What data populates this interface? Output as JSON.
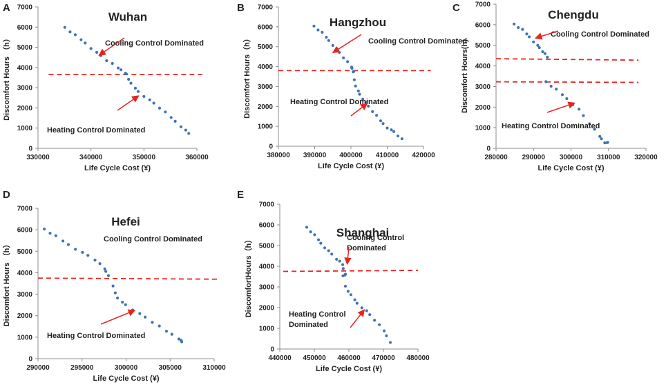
{
  "colors": {
    "series": "#3f73b3",
    "threshold": "#e8231f",
    "arrow": "#e8231f",
    "axis": "#8c8c8c",
    "text": "#222222"
  },
  "chart_data": [
    {
      "panel": "A",
      "type": "scatter",
      "title": "Wuhan",
      "xlabel": "Life Cycle Cost (¥)",
      "ylabel": "Discomfort Hours （h）",
      "xlim": [
        330000,
        360000
      ],
      "ylim": [
        0,
        7000
      ],
      "xticks": [
        "330000",
        "340000",
        "350000",
        "360000"
      ],
      "yticks": [
        "0",
        "1000",
        "2000",
        "3000",
        "4000",
        "5000",
        "6000",
        "7000"
      ],
      "threshold_y": 3650,
      "threshold_x": [
        332000,
        361000
      ],
      "series": [
        {
          "name": "Cooling Control Dominated",
          "values": [
            [
              335200,
              5950
            ],
            [
              337000,
              5600
            ],
            [
              339000,
              5200
            ],
            [
              341000,
              4750
            ],
            [
              343000,
              4350
            ],
            [
              345000,
              4000
            ],
            [
              346500,
              3750
            ]
          ]
        },
        {
          "name": "Heating Control Dominated",
          "values": [
            [
              346800,
              3650
            ],
            [
              347500,
              3200
            ],
            [
              349000,
              2800
            ],
            [
              351000,
              2400
            ],
            [
              353000,
              2000
            ],
            [
              355000,
              1550
            ],
            [
              357000,
              1100
            ],
            [
              358600,
              700
            ]
          ]
        }
      ],
      "annotations": [
        {
          "text": "Cooling Control Dominated",
          "arrow_to": [
            341500,
            4600
          ]
        },
        {
          "text": "Heating Control Dominated",
          "arrow_to": [
            349000,
            2600
          ]
        }
      ]
    },
    {
      "panel": "B",
      "type": "scatter",
      "title": "Hangzhou",
      "xlabel": "Life Cycle Cost (¥)",
      "ylabel": "Discomfort Hours（h）",
      "xlim": [
        380000,
        420000
      ],
      "ylim": [
        0,
        7000
      ],
      "xticks": [
        "380000",
        "390000",
        "400000",
        "410000",
        "420000"
      ],
      "yticks": [
        "0",
        "1000",
        "2000",
        "3000",
        "4000",
        "5000",
        "6000",
        "7000"
      ],
      "threshold_y": 3800,
      "threshold_x": [
        380000,
        422000
      ],
      "series": [
        {
          "name": "Cooling Control Dominated",
          "values": [
            [
              390000,
              6000
            ],
            [
              392000,
              5700
            ],
            [
              394000,
              5300
            ],
            [
              396000,
              4900
            ],
            [
              398000,
              4450
            ],
            [
              400000,
              4000
            ],
            [
              400800,
              3800
            ]
          ]
        },
        {
          "name": "Heating Control Dominated",
          "values": [
            [
              400800,
              3700
            ],
            [
              401200,
              3000
            ],
            [
              402500,
              2600
            ],
            [
              404000,
              2200
            ],
            [
              406000,
              1750
            ],
            [
              408000,
              1300
            ],
            [
              410000,
              950
            ],
            [
              412000,
              700
            ],
            [
              414000,
              350
            ]
          ]
        }
      ],
      "annotations": [
        {
          "text": "Cooling Control Dominated",
          "arrow_to": [
            395000,
            4700
          ]
        },
        {
          "text": "Heating Control Dominated",
          "arrow_to": [
            404500,
            2150
          ]
        }
      ]
    },
    {
      "panel": "C",
      "type": "scatter",
      "title": "Chengdu",
      "xlabel": "Life Cycle Cost (¥)",
      "ylabel": "Discomfort Hours(h)",
      "xlim": [
        280000,
        320000
      ],
      "ylim": [
        0,
        7000
      ],
      "xticks": [
        "280000",
        "290000",
        "300000",
        "310000",
        "320000"
      ],
      "yticks": [
        "0",
        "1000",
        "2000",
        "3000",
        "4000",
        "5000",
        "6000",
        "7000"
      ],
      "thresholds": [
        {
          "y": 4350,
          "x": [
            280000,
            318000
          ],
          "y_end": 4280
        },
        {
          "y": 3230,
          "x": [
            280000,
            318000
          ],
          "y_end": 3200
        }
      ],
      "series": [
        {
          "name": "Cooling Control Dominated",
          "values": [
            [
              285000,
              6000
            ],
            [
              287000,
              5750
            ],
            [
              289000,
              5400
            ],
            [
              291000,
              5000
            ],
            [
              292500,
              4700
            ],
            [
              293500,
              4450
            ]
          ]
        },
        {
          "name": "Heating Control Dominated",
          "values": [
            [
              293500,
              3200
            ],
            [
              296000,
              2850
            ],
            [
              299000,
              2400
            ],
            [
              302000,
              1900
            ],
            [
              305000,
              1200
            ],
            [
              307500,
              600
            ],
            [
              309000,
              300
            ],
            [
              310000,
              250
            ]
          ]
        }
      ],
      "annotations": [
        {
          "text": "Cooling Control Dominated",
          "arrow_to": [
            290500,
            5350
          ]
        },
        {
          "text": "Heating Control Dominated",
          "arrow_to": [
            301000,
            2200
          ]
        }
      ]
    },
    {
      "panel": "D",
      "type": "scatter",
      "title": "Hefei",
      "xlabel": "Life Cycle Cost (¥)",
      "ylabel": "Discomfort Hours （h）",
      "xlim": [
        290000,
        310000
      ],
      "ylim": [
        0,
        7000
      ],
      "xticks": [
        "290000",
        "295000",
        "300000",
        "305000",
        "310000"
      ],
      "yticks": [
        "0",
        "1000",
        "2000",
        "3000",
        "4000",
        "5000",
        "6000",
        "7000"
      ],
      "threshold_y": 3750,
      "threshold_x": [
        290000,
        310500
      ],
      "threshold_y_end": 3700,
      "series": [
        {
          "name": "Cooling Control Dominated",
          "values": [
            [
              290800,
              6000
            ],
            [
              292000,
              5700
            ],
            [
              293500,
              5300
            ],
            [
              295000,
              4950
            ],
            [
              296500,
              4600
            ],
            [
              297500,
              4200
            ],
            [
              298000,
              3900
            ]
          ]
        },
        {
          "name": "Heating Control Dominated",
          "values": [
            [
              298600,
              3350
            ],
            [
              299000,
              2800
            ],
            [
              300000,
              2500
            ],
            [
              301500,
              2100
            ],
            [
              303000,
              1700
            ],
            [
              304500,
              1300
            ],
            [
              306000,
              950
            ],
            [
              306400,
              750
            ]
          ]
        }
      ],
      "annotations": [
        {
          "text": "Cooling Control Dominated",
          "arrow_to": null
        },
        {
          "text": "Heating Control Dominated",
          "arrow_to": [
            301000,
            2250
          ]
        }
      ]
    },
    {
      "panel": "E",
      "type": "scatter",
      "title": "Shanghai",
      "xlabel": "Life Cycle Cost (¥)",
      "ylabel": "DiscomfortHours（h）",
      "xlim": [
        440000,
        480000
      ],
      "ylim": [
        0,
        7000
      ],
      "xticks": [
        "440000",
        "450000",
        "460000",
        "470000",
        "480000"
      ],
      "yticks": [
        "0",
        "1000",
        "2000",
        "3000",
        "4000",
        "5000",
        "6000",
        "7000"
      ],
      "threshold_y": 3750,
      "threshold_x": [
        441000,
        480000
      ],
      "threshold_y_end": 3800,
      "series": [
        {
          "name": "Cooling Control Dominated",
          "values": [
            [
              448000,
              5850
            ],
            [
              450000,
              5500
            ],
            [
              452000,
              5100
            ],
            [
              454000,
              4750
            ],
            [
              456500,
              4350
            ],
            [
              458000,
              4100
            ],
            [
              459000,
              3650
            ],
            [
              458500,
              3500
            ]
          ]
        },
        {
          "name": "Heating Control Dominated",
          "values": [
            [
              459200,
              3000
            ],
            [
              460500,
              2600
            ],
            [
              462500,
              2200
            ],
            [
              465000,
              1850
            ],
            [
              467500,
              1400
            ],
            [
              470000,
              900
            ],
            [
              472000,
              350
            ]
          ]
        }
      ],
      "annotations": [
        {
          "text": "Cooling Control\nDominated",
          "arrow_to": [
            459500,
            4100
          ]
        },
        {
          "text": "Heating Control\nDominated",
          "arrow_to": [
            464500,
            1900
          ]
        }
      ]
    }
  ]
}
